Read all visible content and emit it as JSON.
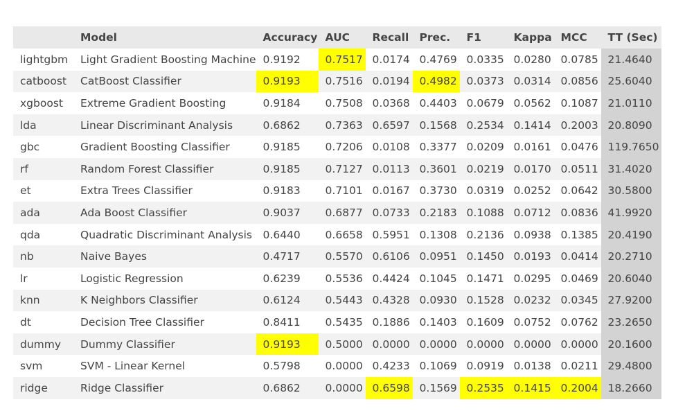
{
  "table": {
    "columns": [
      "",
      "Model",
      "Accuracy",
      "AUC",
      "Recall",
      "Prec.",
      "F1",
      "Kappa",
      "MCC",
      "TT (Sec)"
    ],
    "highlight_color": "#ffff00",
    "tt_column_color": "#d3d3d3",
    "rows": [
      {
        "cells": [
          "lightgbm",
          "Light Gradient Boosting Machine",
          "0.9192",
          "0.7517",
          "0.0174",
          "0.4769",
          "0.0335",
          "0.0280",
          "0.0785",
          "21.4640"
        ],
        "highlight": [
          3
        ]
      },
      {
        "cells": [
          "catboost",
          "CatBoost Classifier",
          "0.9193",
          "0.7516",
          "0.0194",
          "0.4982",
          "0.0373",
          "0.0314",
          "0.0856",
          "25.6040"
        ],
        "highlight": [
          2,
          5
        ]
      },
      {
        "cells": [
          "xgboost",
          "Extreme Gradient Boosting",
          "0.9184",
          "0.7508",
          "0.0368",
          "0.4403",
          "0.0679",
          "0.0562",
          "0.1087",
          "21.0110"
        ],
        "highlight": []
      },
      {
        "cells": [
          "lda",
          "Linear Discriminant Analysis",
          "0.6862",
          "0.7363",
          "0.6597",
          "0.1568",
          "0.2534",
          "0.1414",
          "0.2003",
          "20.8090"
        ],
        "highlight": []
      },
      {
        "cells": [
          "gbc",
          "Gradient Boosting Classifier",
          "0.9185",
          "0.7206",
          "0.0108",
          "0.3377",
          "0.0209",
          "0.0161",
          "0.0476",
          "119.7650"
        ],
        "highlight": []
      },
      {
        "cells": [
          "rf",
          "Random Forest Classifier",
          "0.9185",
          "0.7127",
          "0.0113",
          "0.3601",
          "0.0219",
          "0.0170",
          "0.0511",
          "31.4020"
        ],
        "highlight": []
      },
      {
        "cells": [
          "et",
          "Extra Trees Classifier",
          "0.9183",
          "0.7101",
          "0.0167",
          "0.3730",
          "0.0319",
          "0.0252",
          "0.0642",
          "30.5800"
        ],
        "highlight": []
      },
      {
        "cells": [
          "ada",
          "Ada Boost Classifier",
          "0.9037",
          "0.6877",
          "0.0733",
          "0.2183",
          "0.1088",
          "0.0712",
          "0.0836",
          "41.9920"
        ],
        "highlight": []
      },
      {
        "cells": [
          "qda",
          "Quadratic Discriminant Analysis",
          "0.6440",
          "0.6658",
          "0.5951",
          "0.1308",
          "0.2136",
          "0.0938",
          "0.1385",
          "20.4190"
        ],
        "highlight": []
      },
      {
        "cells": [
          "nb",
          "Naive Bayes",
          "0.4717",
          "0.5570",
          "0.6106",
          "0.0951",
          "0.1450",
          "0.0193",
          "0.0414",
          "20.2710"
        ],
        "highlight": []
      },
      {
        "cells": [
          "lr",
          "Logistic Regression",
          "0.6239",
          "0.5536",
          "0.4424",
          "0.1045",
          "0.1471",
          "0.0295",
          "0.0469",
          "20.6040"
        ],
        "highlight": []
      },
      {
        "cells": [
          "knn",
          "K Neighbors Classifier",
          "0.6124",
          "0.5443",
          "0.4328",
          "0.0930",
          "0.1528",
          "0.0232",
          "0.0345",
          "27.9200"
        ],
        "highlight": []
      },
      {
        "cells": [
          "dt",
          "Decision Tree Classifier",
          "0.8411",
          "0.5435",
          "0.1886",
          "0.1403",
          "0.1609",
          "0.0752",
          "0.0762",
          "23.2650"
        ],
        "highlight": []
      },
      {
        "cells": [
          "dummy",
          "Dummy Classifier",
          "0.9193",
          "0.5000",
          "0.0000",
          "0.0000",
          "0.0000",
          "0.0000",
          "0.0000",
          "20.1600"
        ],
        "highlight": [
          2
        ]
      },
      {
        "cells": [
          "svm",
          "SVM - Linear Kernel",
          "0.5798",
          "0.0000",
          "0.4233",
          "0.1069",
          "0.0919",
          "0.0138",
          "0.0211",
          "29.4800"
        ],
        "highlight": []
      },
      {
        "cells": [
          "ridge",
          "Ridge Classifier",
          "0.6862",
          "0.0000",
          "0.6598",
          "0.1569",
          "0.2535",
          "0.1415",
          "0.2004",
          "18.2660"
        ],
        "highlight": [
          4,
          6,
          7,
          8
        ]
      }
    ]
  }
}
